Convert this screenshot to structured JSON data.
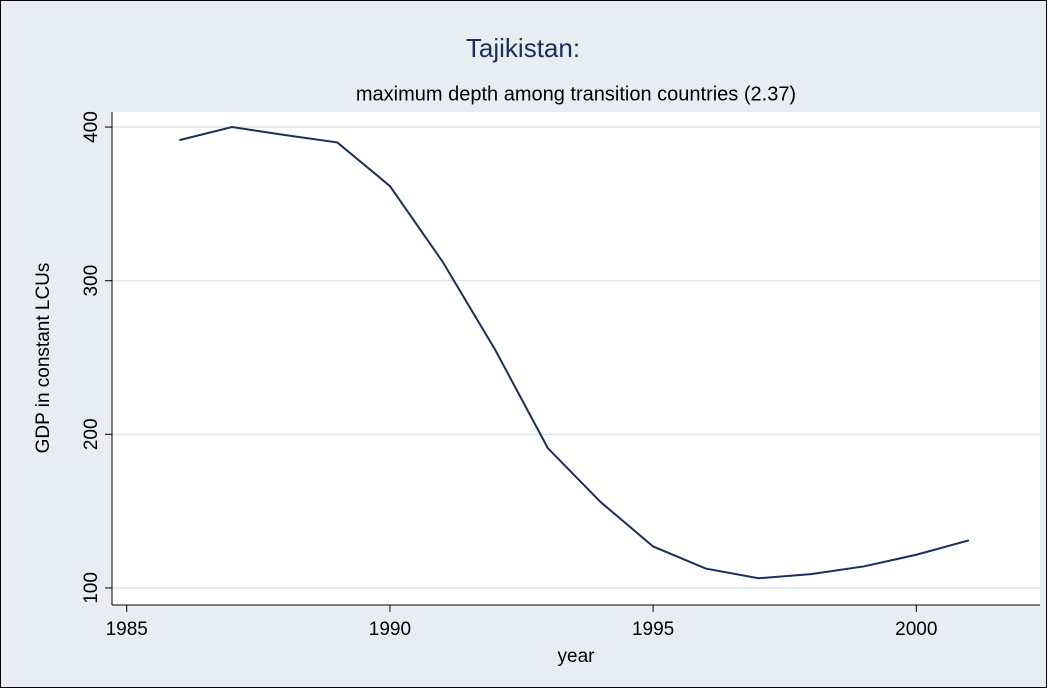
{
  "chart_data": {
    "type": "line",
    "title": "Tajikistan:",
    "subtitle": "maximum depth among transition countries (2.37)",
    "x_label": "year",
    "y_label": "GDP in constant LCUs",
    "x": [
      1986,
      1987,
      1988,
      1989,
      1990,
      1991,
      1992,
      1993,
      1994,
      1995,
      1996,
      1997,
      1998,
      1999,
      2000,
      2001
    ],
    "series": [
      {
        "name": "GDP",
        "color": "#1a2e5a",
        "values": [
          391.5,
          400,
          394.8,
          390,
          361.6,
          312.4,
          255,
          191,
          156,
          127,
          112.6,
          106.3,
          109,
          114,
          121.6,
          131
        ]
      }
    ],
    "xlim": [
      1984.72,
      2002.35
    ],
    "xticks": [
      1985,
      1990,
      1995,
      2000
    ],
    "ylim": [
      88.9,
      409.8
    ],
    "yticks": [
      100,
      200,
      300,
      400
    ],
    "grid": true
  }
}
